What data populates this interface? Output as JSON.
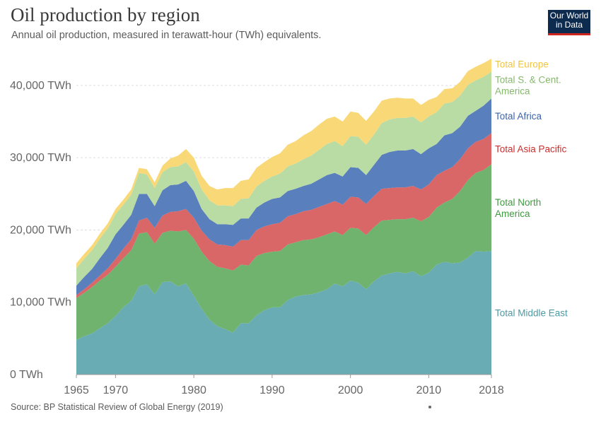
{
  "header": {
    "title": "Oil production by region",
    "subtitle": "Annual oil production, measured in terawatt-hour (TWh) equivalents."
  },
  "logo": {
    "line1": "Our World",
    "line2": "in Data"
  },
  "footer": {
    "source": "Source: BP Statistical Review of Global Energy (2019)"
  },
  "chart_data": {
    "type": "area",
    "stacked": true,
    "title": "Oil production by region",
    "subtitle": "Annual oil production, measured in terawatt-hour (TWh) equivalents.",
    "xlabel": "",
    "ylabel": "",
    "xlim": [
      1965,
      2018
    ],
    "ylim": [
      0,
      44000
    ],
    "y_ticks": [
      0,
      10000,
      20000,
      30000,
      40000
    ],
    "y_tick_labels": [
      "0 TWh",
      "10,000 TWh",
      "20,000 TWh",
      "30,000 TWh",
      "40,000 TWh"
    ],
    "x_tick_labels": [
      "1965",
      "1970",
      "1980",
      "1990",
      "2000",
      "2010",
      "2018"
    ],
    "grid": "horizontal dashed",
    "legend": "labels at right end of each series",
    "x": [
      1965,
      1966,
      1967,
      1968,
      1969,
      1970,
      1971,
      1972,
      1973,
      1974,
      1975,
      1976,
      1977,
      1978,
      1979,
      1980,
      1981,
      1982,
      1983,
      1984,
      1985,
      1986,
      1987,
      1988,
      1989,
      1990,
      1991,
      1992,
      1993,
      1994,
      1995,
      1996,
      1997,
      1998,
      1999,
      2000,
      2001,
      2002,
      2003,
      2004,
      2005,
      2006,
      2007,
      2008,
      2009,
      2010,
      2011,
      2012,
      2013,
      2014,
      2015,
      2016,
      2017,
      2018
    ],
    "series": [
      {
        "name": "Total Middle East",
        "color": "#6aacb4",
        "values": [
          4800,
          5300,
          5700,
          6400,
          7100,
          8100,
          9300,
          10200,
          12200,
          12500,
          11100,
          12800,
          12900,
          12200,
          12600,
          10900,
          9100,
          7600,
          6700,
          6300,
          5800,
          7100,
          7100,
          8200,
          8900,
          9300,
          9300,
          10300,
          10800,
          11000,
          11100,
          11400,
          11800,
          12600,
          12200,
          13000,
          12700,
          11800,
          12900,
          13700,
          14000,
          14200,
          14000,
          14300,
          13600,
          14100,
          15200,
          15600,
          15400,
          15500,
          16200,
          17100,
          17000,
          17100
        ]
      },
      {
        "name": "Total North America",
        "color": "#6fb36f",
        "values": [
          5800,
          6000,
          6400,
          6600,
          6700,
          6800,
          6800,
          7000,
          7300,
          7200,
          7000,
          6800,
          7000,
          7600,
          7400,
          7900,
          7900,
          8100,
          8200,
          8400,
          8600,
          8100,
          8000,
          8200,
          7900,
          7700,
          7800,
          7700,
          7500,
          7600,
          7600,
          7600,
          7600,
          7200,
          7100,
          7300,
          7500,
          7500,
          7500,
          7600,
          7400,
          7300,
          7500,
          7400,
          7600,
          7700,
          7900,
          8200,
          8900,
          9900,
          10700,
          10800,
          11300,
          12000
        ]
      },
      {
        "name": "Total Asia Pacific",
        "color": "#d96767",
        "values": [
          400,
          500,
          600,
          700,
          900,
          1100,
          1300,
          1500,
          1800,
          2000,
          2200,
          2400,
          2600,
          2800,
          2900,
          2900,
          2900,
          3000,
          3100,
          3200,
          3300,
          3400,
          3500,
          3600,
          3700,
          3800,
          3900,
          3900,
          3900,
          4000,
          4100,
          4200,
          4200,
          4200,
          4200,
          4300,
          4300,
          4300,
          4300,
          4400,
          4400,
          4400,
          4400,
          4400,
          4400,
          4500,
          4500,
          4400,
          4400,
          4400,
          4400,
          4300,
          4300,
          4300
        ]
      },
      {
        "name": "Total Africa",
        "color": "#5a7fbd",
        "values": [
          1300,
          1700,
          1900,
          2400,
          2800,
          3400,
          3300,
          3400,
          3700,
          3300,
          3000,
          3500,
          3700,
          3700,
          3900,
          3700,
          3000,
          2800,
          2800,
          2900,
          3000,
          3000,
          3000,
          3100,
          3300,
          3500,
          3500,
          3500,
          3500,
          3500,
          3600,
          3800,
          4000,
          3900,
          3900,
          4100,
          4100,
          4000,
          4300,
          4700,
          5000,
          5100,
          5100,
          5100,
          4900,
          5000,
          4300,
          4900,
          4700,
          4500,
          4500,
          4300,
          4600,
          4800
        ]
      },
      {
        "name": "Total S. & Cent. America",
        "color": "#b9dba4",
        "values": [
          2400,
          2500,
          2600,
          2700,
          2700,
          2800,
          2800,
          2800,
          2900,
          2700,
          2500,
          2500,
          2500,
          2500,
          2600,
          2700,
          2700,
          2600,
          2600,
          2600,
          2600,
          2700,
          2800,
          2900,
          3000,
          3100,
          3300,
          3400,
          3500,
          3700,
          3900,
          4100,
          4300,
          4400,
          4200,
          4300,
          4300,
          4200,
          4200,
          4400,
          4500,
          4500,
          4500,
          4500,
          4400,
          4400,
          4400,
          4400,
          4300,
          4300,
          4300,
          4200,
          4000,
          3700
        ]
      },
      {
        "name": "Total Europe",
        "color": "#f9d977",
        "values": [
          700,
          700,
          700,
          700,
          700,
          700,
          700,
          700,
          700,
          700,
          800,
          900,
          1200,
          1500,
          1800,
          1900,
          1900,
          2000,
          2200,
          2400,
          2500,
          2500,
          2600,
          2600,
          2600,
          2700,
          2800,
          3000,
          3100,
          3300,
          3400,
          3500,
          3500,
          3400,
          3400,
          3400,
          3300,
          3300,
          3200,
          3100,
          2900,
          2800,
          2700,
          2500,
          2400,
          2300,
          2100,
          2000,
          1900,
          1900,
          1900,
          1900,
          1900,
          1800
        ]
      }
    ],
    "series_label_lines": {
      "Total Middle East": [
        "Total Middle East"
      ],
      "Total North America": [
        "Total North",
        "America"
      ],
      "Total Asia Pacific": [
        "Total Asia Pacific"
      ],
      "Total Africa": [
        "Total Africa"
      ],
      "Total S. & Cent. America": [
        "Total S. & Cent.",
        "America"
      ],
      "Total Europe": [
        "Total Europe"
      ]
    },
    "label_colors": {
      "Total Middle East": "#4f9aa3",
      "Total North America": "#3f9a3f",
      "Total Asia Pacific": "#cc2e2e",
      "Total Africa": "#3b63ad",
      "Total S. & Cent. America": "#85b86b",
      "Total Europe": "#f2c53d"
    }
  }
}
